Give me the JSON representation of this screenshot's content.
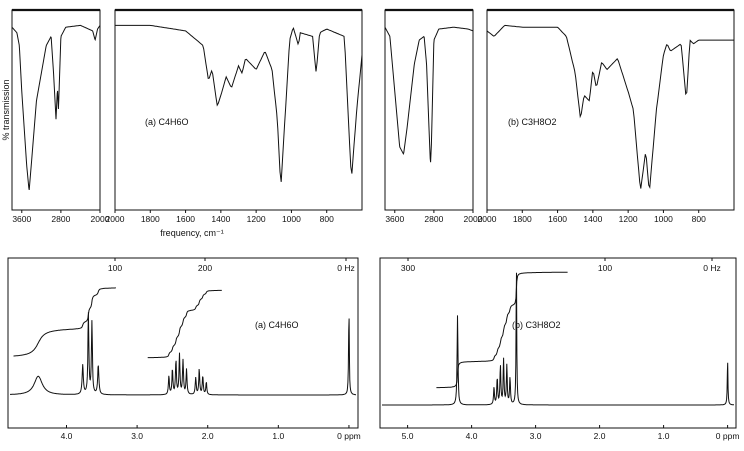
{
  "chart_data": [
    {
      "type": "line",
      "kind": "IR spectrum",
      "label": "(a) C4H6O",
      "ylabel": "% transmission",
      "xlabel": "frequency, cm⁻¹",
      "segments": [
        {
          "xlim": [
            3800,
            2000
          ],
          "ticks": [
            3600,
            2800,
            2000
          ]
        },
        {
          "xlim": [
            2000,
            600
          ],
          "ticks": [
            2000,
            1800,
            1600,
            1400,
            1200,
            1000,
            800
          ]
        }
      ],
      "points": [
        [
          3800,
          0.95
        ],
        [
          3700,
          0.92
        ],
        [
          3650,
          0.85
        ],
        [
          3600,
          0.6
        ],
        [
          3500,
          0.2
        ],
        [
          3450,
          0.06
        ],
        [
          3400,
          0.22
        ],
        [
          3300,
          0.55
        ],
        [
          3100,
          0.85
        ],
        [
          3000,
          0.9
        ],
        [
          2950,
          0.7
        ],
        [
          2900,
          0.45
        ],
        [
          2870,
          0.62
        ],
        [
          2850,
          0.5
        ],
        [
          2800,
          0.9
        ],
        [
          2700,
          0.95
        ],
        [
          2400,
          0.96
        ],
        [
          2150,
          0.93
        ],
        [
          2100,
          0.88
        ],
        [
          2050,
          0.94
        ],
        [
          2000,
          0.96
        ],
        [
          1800,
          0.96
        ],
        [
          1600,
          0.93
        ],
        [
          1500,
          0.85
        ],
        [
          1470,
          0.66
        ],
        [
          1450,
          0.72
        ],
        [
          1420,
          0.52
        ],
        [
          1400,
          0.58
        ],
        [
          1370,
          0.68
        ],
        [
          1340,
          0.62
        ],
        [
          1300,
          0.74
        ],
        [
          1280,
          0.7
        ],
        [
          1260,
          0.78
        ],
        [
          1200,
          0.72
        ],
        [
          1150,
          0.82
        ],
        [
          1110,
          0.72
        ],
        [
          1080,
          0.45
        ],
        [
          1060,
          0.08
        ],
        [
          1040,
          0.4
        ],
        [
          1010,
          0.88
        ],
        [
          990,
          0.95
        ],
        [
          960,
          0.85
        ],
        [
          950,
          0.92
        ],
        [
          880,
          0.9
        ],
        [
          860,
          0.7
        ],
        [
          840,
          0.92
        ],
        [
          800,
          0.94
        ],
        [
          700,
          0.9
        ],
        [
          660,
          0.12
        ],
        [
          630,
          0.5
        ],
        [
          600,
          0.8
        ]
      ]
    },
    {
      "type": "line",
      "kind": "IR spectrum",
      "label": "(b) C3H8O2",
      "ylabel": "",
      "xlabel": "",
      "segments": [
        {
          "xlim": [
            3800,
            2000
          ],
          "ticks": [
            3600,
            2800,
            2000
          ]
        },
        {
          "xlim": [
            2000,
            600
          ],
          "ticks": [
            2000,
            1800,
            1600,
            1400,
            1200,
            1000,
            800
          ]
        }
      ],
      "points": [
        [
          3800,
          0.95
        ],
        [
          3700,
          0.9
        ],
        [
          3600,
          0.6
        ],
        [
          3500,
          0.3
        ],
        [
          3420,
          0.26
        ],
        [
          3350,
          0.4
        ],
        [
          3200,
          0.75
        ],
        [
          3100,
          0.88
        ],
        [
          3000,
          0.9
        ],
        [
          2950,
          0.75
        ],
        [
          2900,
          0.4
        ],
        [
          2870,
          0.2
        ],
        [
          2850,
          0.32
        ],
        [
          2800,
          0.88
        ],
        [
          2700,
          0.94
        ],
        [
          2400,
          0.95
        ],
        [
          2100,
          0.94
        ],
        [
          2000,
          0.93
        ],
        [
          1960,
          0.9
        ],
        [
          1900,
          0.96
        ],
        [
          1800,
          0.95
        ],
        [
          1600,
          0.95
        ],
        [
          1550,
          0.9
        ],
        [
          1500,
          0.7
        ],
        [
          1470,
          0.45
        ],
        [
          1450,
          0.58
        ],
        [
          1420,
          0.55
        ],
        [
          1400,
          0.72
        ],
        [
          1380,
          0.62
        ],
        [
          1350,
          0.76
        ],
        [
          1320,
          0.72
        ],
        [
          1260,
          0.78
        ],
        [
          1200,
          0.6
        ],
        [
          1170,
          0.5
        ],
        [
          1130,
          0.06
        ],
        [
          1100,
          0.28
        ],
        [
          1080,
          0.05
        ],
        [
          1040,
          0.5
        ],
        [
          1000,
          0.8
        ],
        [
          980,
          0.86
        ],
        [
          960,
          0.82
        ],
        [
          900,
          0.86
        ],
        [
          870,
          0.55
        ],
        [
          850,
          0.88
        ],
        [
          830,
          0.86
        ],
        [
          800,
          0.88
        ],
        [
          600,
          0.88
        ]
      ]
    },
    {
      "type": "line",
      "kind": "1H NMR spectrum",
      "label": "(a) C4H6O",
      "xlabel": "ppm",
      "xlim": [
        4.8,
        -0.1
      ],
      "ppm_ticks": [
        "4.0",
        "3.0",
        "2.0",
        "1.0",
        "0 ppm"
      ],
      "hz_ticks": [
        "200",
        "100",
        "0 Hz"
      ],
      "peaks": [
        {
          "ppm": 4.4,
          "height": 0.22,
          "width": 0.07
        },
        {
          "ppm": 3.77,
          "height": 0.35,
          "width": 0.01
        },
        {
          "ppm": 3.69,
          "height": 0.95,
          "width": 0.008
        },
        {
          "ppm": 3.64,
          "height": 0.85,
          "width": 0.008
        },
        {
          "ppm": 3.55,
          "height": 0.35,
          "width": 0.01
        },
        {
          "ppm": 2.55,
          "height": 0.22,
          "width": 0.008
        },
        {
          "ppm": 2.5,
          "height": 0.3,
          "width": 0.008
        },
        {
          "ppm": 2.45,
          "height": 0.4,
          "width": 0.008
        },
        {
          "ppm": 2.4,
          "height": 0.48,
          "width": 0.008
        },
        {
          "ppm": 2.35,
          "height": 0.4,
          "width": 0.008
        },
        {
          "ppm": 2.3,
          "height": 0.3,
          "width": 0.008
        },
        {
          "ppm": 2.17,
          "height": 0.2,
          "width": 0.008
        },
        {
          "ppm": 2.12,
          "height": 0.3,
          "width": 0.008
        },
        {
          "ppm": 2.07,
          "height": 0.22,
          "width": 0.008
        },
        {
          "ppm": 2.02,
          "height": 0.15,
          "width": 0.008
        },
        {
          "ppm": 0.0,
          "height": 1.0,
          "width": 0.006
        }
      ]
    },
    {
      "type": "line",
      "kind": "1H NMR spectrum",
      "label": "(b) C3H8O2",
      "xlabel": "ppm",
      "xlim": [
        5.4,
        -0.1
      ],
      "ppm_ticks": [
        "5.0",
        "4.0",
        "3.0",
        "2.0",
        "1.0",
        "0 ppm"
      ],
      "hz_ticks": [
        "300",
        "100",
        "0 Hz"
      ],
      "peaks": [
        {
          "ppm": 4.22,
          "height": 0.6,
          "width": 0.008
        },
        {
          "ppm": 3.65,
          "height": 0.12,
          "width": 0.008
        },
        {
          "ppm": 3.6,
          "height": 0.18,
          "width": 0.008
        },
        {
          "ppm": 3.55,
          "height": 0.26,
          "width": 0.008
        },
        {
          "ppm": 3.5,
          "height": 0.3,
          "width": 0.008
        },
        {
          "ppm": 3.45,
          "height": 0.26,
          "width": 0.008
        },
        {
          "ppm": 3.4,
          "height": 0.18,
          "width": 0.008
        },
        {
          "ppm": 3.3,
          "height": 1.0,
          "width": 0.006
        },
        {
          "ppm": 0.0,
          "height": 0.32,
          "width": 0.006
        }
      ]
    }
  ]
}
